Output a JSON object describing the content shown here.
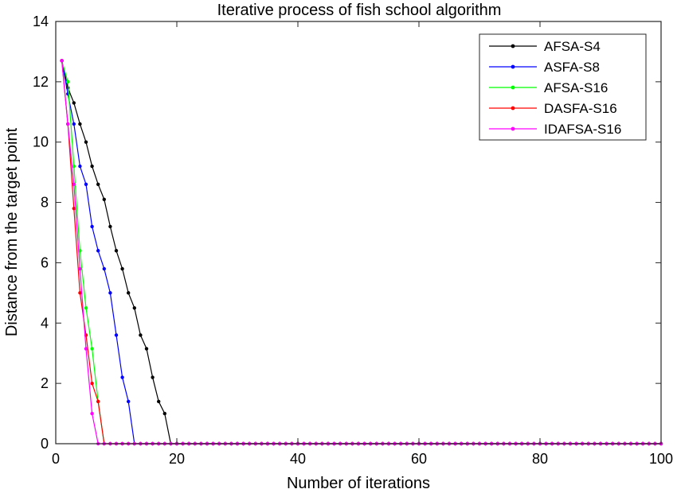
{
  "chart_data": {
    "type": "line",
    "title": "Iterative process of fish school algorithm",
    "xlabel": "Number of iterations",
    "ylabel": "Distance from the target point",
    "xlim": [
      0,
      100
    ],
    "ylim": [
      0,
      14
    ],
    "xticks": [
      "0",
      "20",
      "40",
      "60",
      "80",
      "100"
    ],
    "yticks": [
      "0",
      "2",
      "4",
      "6",
      "8",
      "10",
      "12",
      "14"
    ],
    "grid": false,
    "legend_position": "top-right",
    "series": [
      {
        "name": "AFSA-S4",
        "color": "#000000",
        "x": [
          1,
          2,
          3,
          4,
          5,
          6,
          7,
          8,
          9,
          10,
          11,
          12,
          13,
          14,
          15,
          16,
          17,
          18,
          19
        ],
        "y": [
          12.7,
          11.8,
          11.3,
          10.6,
          10.0,
          9.2,
          8.6,
          8.1,
          7.2,
          6.4,
          5.8,
          5.0,
          4.5,
          3.6,
          3.15,
          2.2,
          1.4,
          1.0,
          0.0
        ]
      },
      {
        "name": "ASFA-S8",
        "color": "#0000ff",
        "x": [
          1,
          2,
          3,
          4,
          5,
          6,
          7,
          8,
          9,
          10,
          11,
          12,
          13
        ],
        "y": [
          12.7,
          11.6,
          10.6,
          9.2,
          8.6,
          7.2,
          6.4,
          5.8,
          5.0,
          3.6,
          2.2,
          1.4,
          0.0
        ]
      },
      {
        "name": "AFSA-S16",
        "color": "#00ff00",
        "x": [
          1,
          2,
          3,
          4,
          5,
          6,
          7,
          8
        ],
        "y": [
          12.7,
          12.0,
          9.2,
          6.4,
          4.5,
          3.15,
          1.4,
          0.0
        ]
      },
      {
        "name": "DASFA-S16",
        "color": "#ff0000",
        "x": [
          1,
          2,
          3,
          4,
          5,
          6,
          7,
          8
        ],
        "y": [
          12.7,
          10.6,
          7.8,
          5.0,
          3.6,
          2.0,
          1.4,
          0.0
        ]
      },
      {
        "name": "IDAFSA-S16",
        "color": "#ff00ff",
        "x": [
          1,
          2,
          3,
          4,
          5,
          6,
          7
        ],
        "y": [
          12.7,
          10.6,
          8.6,
          5.8,
          3.15,
          1.0,
          0.0
        ]
      }
    ]
  }
}
